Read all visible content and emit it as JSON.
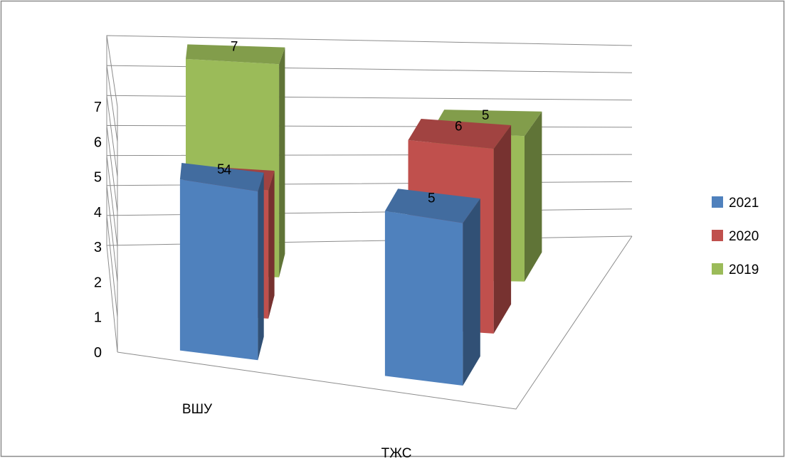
{
  "chart_data": {
    "type": "bar",
    "subtype": "3d-column",
    "title": "",
    "xlabel": "",
    "ylabel": "",
    "categories": [
      "ВШУ",
      "ТЖС"
    ],
    "series": [
      {
        "name": "2021",
        "values": [
          5,
          5
        ],
        "color": "#4F81BD"
      },
      {
        "name": "2020",
        "values": [
          4,
          6
        ],
        "color": "#C0504D"
      },
      {
        "name": "2019",
        "values": [
          7,
          5
        ],
        "color": "#9BBB59"
      }
    ],
    "ylim": [
      0,
      7
    ],
    "y_ticks": [
      "0",
      "1",
      "2",
      "3",
      "4",
      "5",
      "6",
      "7"
    ],
    "grid": true,
    "data_labels": true,
    "legend": "right"
  }
}
